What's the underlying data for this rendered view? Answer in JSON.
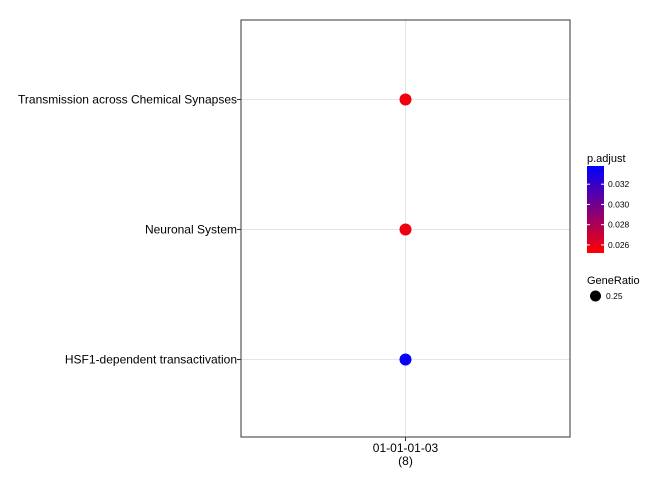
{
  "chart_data": {
    "type": "scatter",
    "x_categories": [
      {
        "label": "01-01-01-03",
        "sublabel": "(8)"
      }
    ],
    "y_categories": [
      "HSF1-dependent transactivation",
      "Neuronal System",
      "Transmission across Chemical Synapses"
    ],
    "points": [
      {
        "x": "01-01-01-03",
        "y": "Transmission across Chemical Synapses",
        "p_adjust": 0.0257,
        "gene_ratio": 0.25
      },
      {
        "x": "01-01-01-03",
        "y": "Neuronal System",
        "p_adjust": 0.0257,
        "gene_ratio": 0.25
      },
      {
        "x": "01-01-01-03",
        "y": "HSF1-dependent transactivation",
        "p_adjust": 0.0335,
        "gene_ratio": 0.25
      }
    ],
    "color_legend": {
      "title": "p.adjust",
      "ticks": [
        0.026,
        0.028,
        0.03,
        0.032
      ],
      "tick_labels": [
        "0.026",
        "0.028",
        "0.030",
        "0.032"
      ],
      "range": [
        0.0252,
        0.0338
      ],
      "low_color": "#ff0000",
      "high_color": "#0000ff"
    },
    "size_legend": {
      "title": "GeneRatio",
      "entries": [
        {
          "value": 0.25,
          "label": "0.25"
        }
      ]
    },
    "grid": true,
    "legend_position": "right"
  }
}
